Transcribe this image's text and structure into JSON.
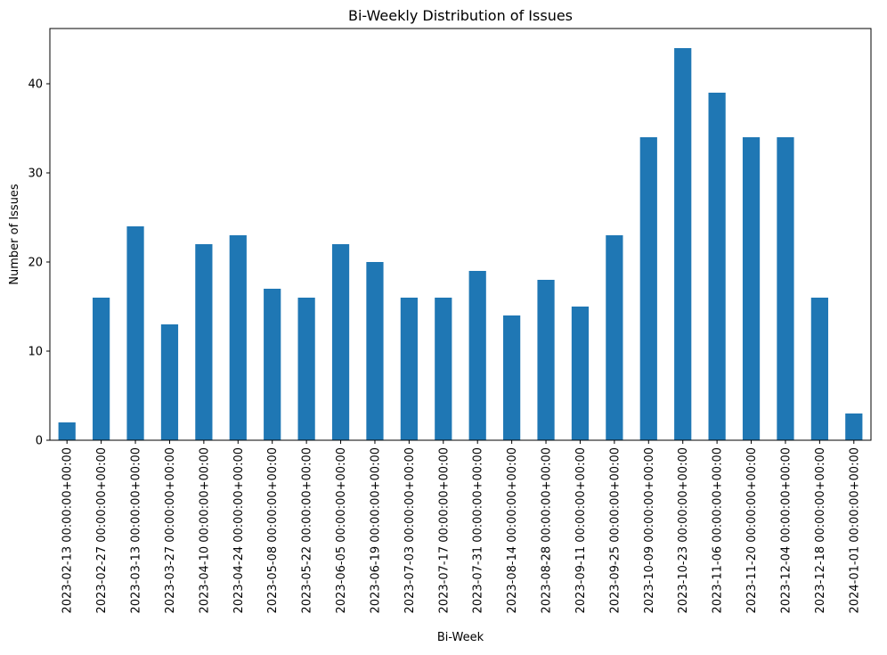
{
  "chart_data": {
    "type": "bar",
    "title": "Bi-Weekly Distribution of Issues",
    "xlabel": "Bi-Week",
    "ylabel": "Number of Issues",
    "ylim": [
      0,
      46.2
    ],
    "yticks": [
      0,
      10,
      20,
      30,
      40
    ],
    "bar_color": "#1f77b4",
    "grid": false,
    "legend": "none",
    "categories": [
      "2023-02-13 00:00:00+00:00",
      "2023-02-27 00:00:00+00:00",
      "2023-03-13 00:00:00+00:00",
      "2023-03-27 00:00:00+00:00",
      "2023-04-10 00:00:00+00:00",
      "2023-04-24 00:00:00+00:00",
      "2023-05-08 00:00:00+00:00",
      "2023-05-22 00:00:00+00:00",
      "2023-06-05 00:00:00+00:00",
      "2023-06-19 00:00:00+00:00",
      "2023-07-03 00:00:00+00:00",
      "2023-07-17 00:00:00+00:00",
      "2023-07-31 00:00:00+00:00",
      "2023-08-14 00:00:00+00:00",
      "2023-08-28 00:00:00+00:00",
      "2023-09-11 00:00:00+00:00",
      "2023-09-25 00:00:00+00:00",
      "2023-10-09 00:00:00+00:00",
      "2023-10-23 00:00:00+00:00",
      "2023-11-06 00:00:00+00:00",
      "2023-11-20 00:00:00+00:00",
      "2023-12-04 00:00:00+00:00",
      "2023-12-18 00:00:00+00:00",
      "2024-01-01 00:00:00+00:00"
    ],
    "values": [
      2,
      16,
      24,
      13,
      22,
      23,
      17,
      16,
      22,
      20,
      16,
      16,
      19,
      14,
      18,
      15,
      23,
      34,
      44,
      39,
      34,
      34,
      16,
      3
    ]
  }
}
